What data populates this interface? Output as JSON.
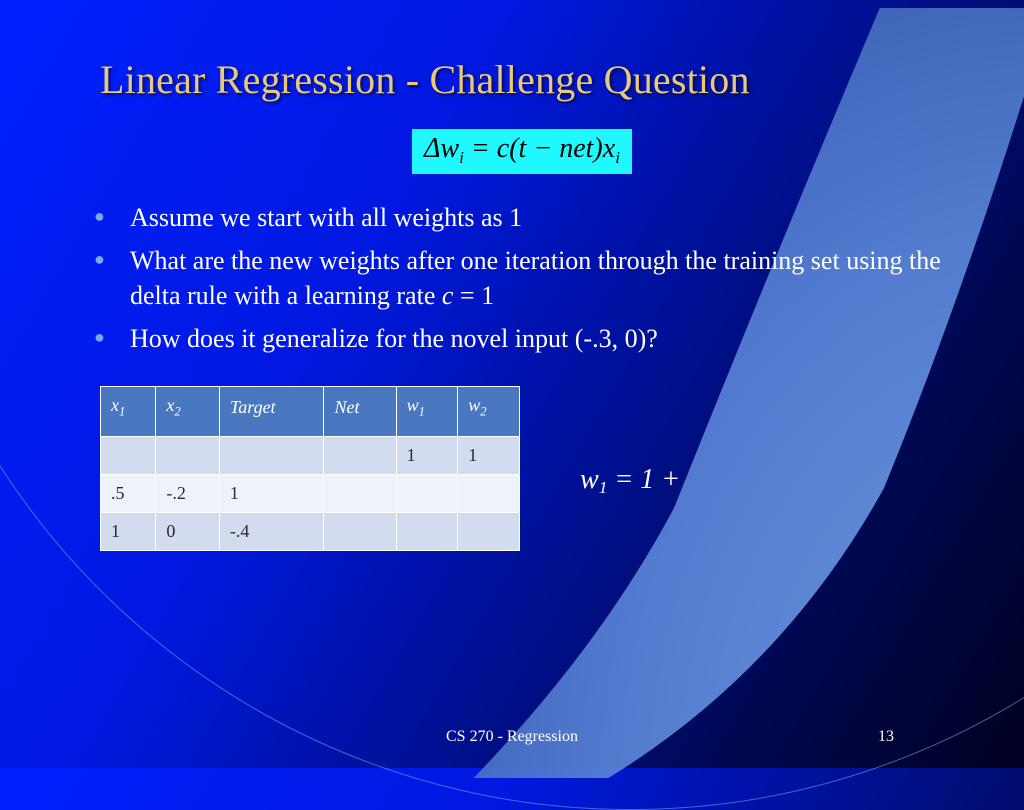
{
  "title": "Linear Regression - Challenge Question",
  "formula": "Δw<sub>i</sub> = c(t − net)x<sub>i</sub>",
  "bullets": [
    "Assume we start with all weights as 1",
    "What are the new weights after one iteration through the training set using the delta rule with a learning rate <em>c</em> = 1",
    "How does it generalize for the novel input (-.3, 0)?"
  ],
  "table": {
    "headers": [
      "x<sub>1</sub>",
      "x<sub>2</sub>",
      "Target",
      "Net",
      "w<sub>1</sub>",
      "w<sub>2</sub>"
    ],
    "rows": [
      [
        "",
        "",
        "",
        "",
        "1",
        "1"
      ],
      [
        ".5",
        "-.2",
        "1",
        "",
        "",
        ""
      ],
      [
        "1",
        "0",
        "-.4",
        "",
        "",
        ""
      ]
    ],
    "header_bg": "#4a78c0",
    "row_bg_even": "#d2dcef",
    "row_bg_odd": "#eef2fa"
  },
  "side_equation": "w<sub>1</sub> = 1 +",
  "footer": "CS 270 - Regression",
  "page_number": "13",
  "colors": {
    "title": "#e8c97a",
    "formula_bg": "#20f8ff",
    "bullet_marker": "#7aa8e8",
    "crescent": "#5a8ae8"
  }
}
